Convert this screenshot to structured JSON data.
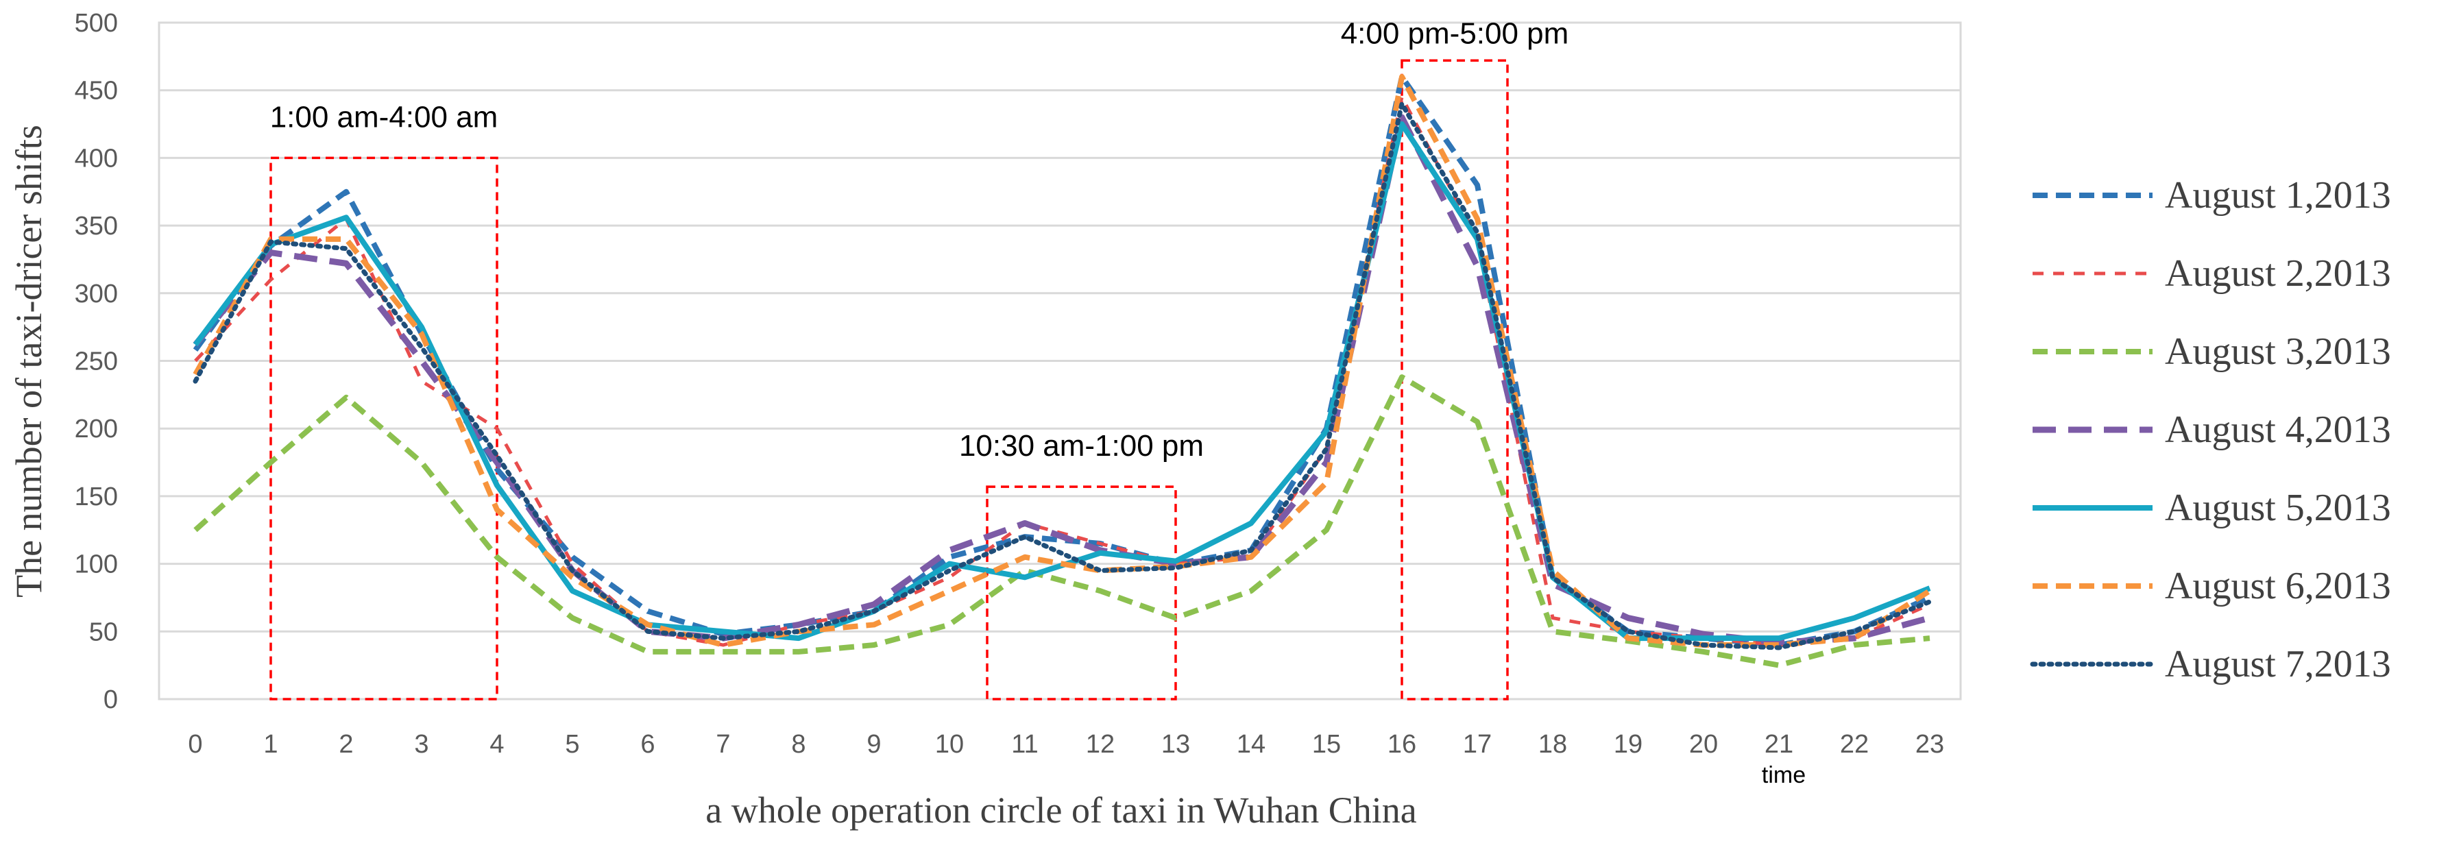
{
  "chart_data": {
    "type": "line",
    "title": "",
    "xlabel": "a whole operation circle of taxi in Wuhan China",
    "ylabel": "The number of taxi-dricer shifts",
    "x_unit_label": "time",
    "categories": [
      "0",
      "1",
      "2",
      "3",
      "4",
      "5",
      "6",
      "7",
      "8",
      "9",
      "10",
      "11",
      "12",
      "13",
      "14",
      "15",
      "16",
      "17",
      "18",
      "19",
      "20",
      "21",
      "22",
      "23"
    ],
    "ylim": [
      0,
      500
    ],
    "yticks": [
      "0",
      "50",
      "100",
      "150",
      "200",
      "250",
      "300",
      "350",
      "400",
      "450",
      "500"
    ],
    "grid": true,
    "legend_position": "right",
    "series": [
      {
        "name": "August 1,2013",
        "color": "#2e75b6",
        "style": "dash",
        "values": [
          258,
          335,
          375,
          270,
          170,
          105,
          65,
          48,
          55,
          65,
          105,
          120,
          115,
          100,
          110,
          200,
          460,
          380,
          90,
          50,
          45,
          40,
          50,
          75
        ]
      },
      {
        "name": "August 2,2013",
        "color": "#e84c4c",
        "style": "shortdash",
        "values": [
          250,
          310,
          355,
          235,
          200,
          100,
          50,
          40,
          55,
          65,
          90,
          130,
          115,
          100,
          105,
          185,
          445,
          340,
          60,
          50,
          45,
          40,
          45,
          70
        ]
      },
      {
        "name": "August 3,2013",
        "color": "#8cc04f",
        "style": "dash",
        "values": [
          125,
          175,
          223,
          175,
          105,
          60,
          35,
          35,
          35,
          40,
          55,
          95,
          80,
          60,
          80,
          125,
          238,
          205,
          50,
          43,
          35,
          25,
          40,
          45
        ]
      },
      {
        "name": "August 4,2013",
        "color": "#7c5ba6",
        "style": "longdash",
        "values": [
          262,
          330,
          322,
          250,
          175,
          95,
          50,
          45,
          55,
          70,
          110,
          130,
          110,
          100,
          105,
          175,
          430,
          320,
          85,
          60,
          48,
          42,
          45,
          60
        ]
      },
      {
        "name": "August 5,2013",
        "color": "#17a6c4",
        "style": "solid",
        "values": [
          262,
          336,
          356,
          275,
          158,
          80,
          55,
          50,
          45,
          65,
          100,
          90,
          108,
          102,
          130,
          198,
          425,
          340,
          90,
          45,
          45,
          45,
          60,
          82
        ]
      },
      {
        "name": "August 6,2013",
        "color": "#f7943c",
        "style": "dash",
        "values": [
          240,
          340,
          340,
          270,
          140,
          90,
          55,
          40,
          50,
          55,
          80,
          105,
          95,
          98,
          105,
          160,
          460,
          355,
          95,
          45,
          40,
          40,
          45,
          80
        ]
      },
      {
        "name": "August 7,2013",
        "color": "#1f4e79",
        "style": "dot",
        "values": [
          235,
          338,
          333,
          260,
          180,
          95,
          50,
          45,
          50,
          65,
          95,
          120,
          95,
          97,
          110,
          185,
          440,
          345,
          90,
          50,
          40,
          38,
          50,
          72
        ]
      }
    ],
    "annotations": [
      {
        "label": "1:00 am-4:00 am",
        "x_range": [
          1,
          4
        ],
        "y_range": [
          0,
          400
        ],
        "color": "#ff0000"
      },
      {
        "label": "10:30 am-1:00 pm",
        "x_range": [
          10.5,
          13
        ],
        "y_range": [
          0,
          157
        ],
        "color": "#ff0000"
      },
      {
        "label": "4:00 pm-5:00 pm",
        "x_range": [
          16,
          17.4
        ],
        "y_range": [
          0,
          472
        ],
        "color": "#ff0000"
      }
    ]
  }
}
